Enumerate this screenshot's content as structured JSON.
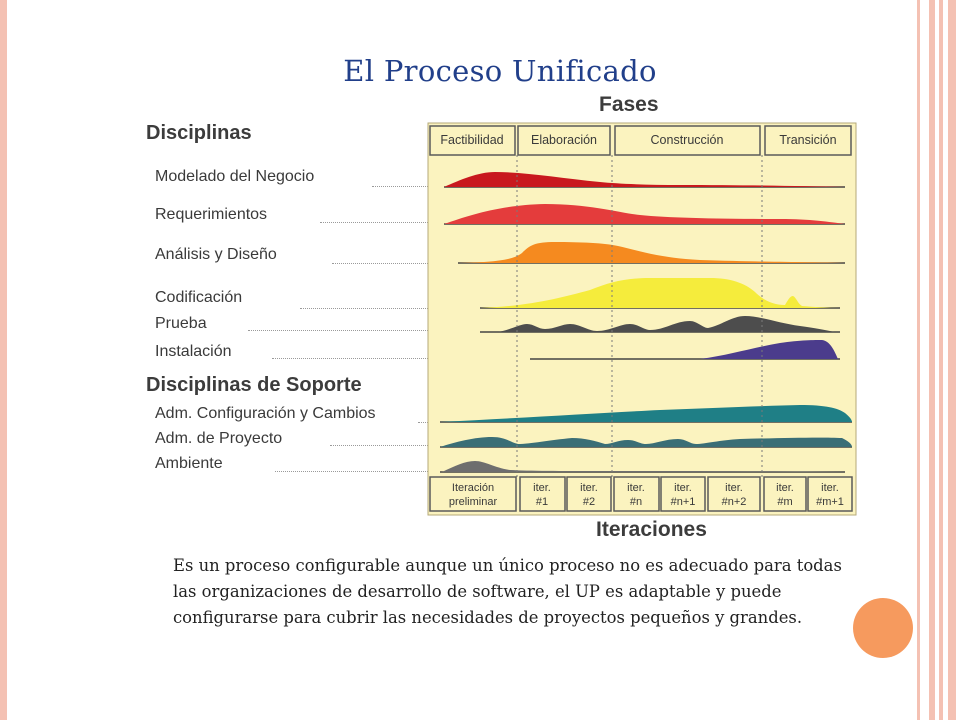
{
  "slide": {
    "title": "El Proceso Unificado",
    "paragraph": "Es un proceso configurable aunque un único proceso no es adecuado para todas las organizaciones de desarrollo de software, el UP es adaptable y puede configurarse para cubrir las necesidades  de proyectos pequeños y grandes."
  },
  "diagram": {
    "phases_heading": "Fases",
    "disciplines_heading": "Disciplinas",
    "support_heading": "Disciplinas de Soporte",
    "iterations_heading": "Iteraciones",
    "phases": [
      "Factibilidad",
      "Elaboración",
      "Construcción",
      "Transición"
    ],
    "disciplines": [
      {
        "label": "Modelado del Negocio",
        "color": "#c8181e"
      },
      {
        "label": "Requerimientos",
        "color": "#e43c3c"
      },
      {
        "label": "Análisis y Diseño",
        "color": "#f58a1f"
      },
      {
        "label": "Codificación",
        "color": "#f5ec3c"
      },
      {
        "label": "Prueba",
        "color": "#4d4d4d"
      },
      {
        "label": "Instalación",
        "color": "#4b3c8c"
      }
    ],
    "support_disciplines": [
      {
        "label": "Adm. Configuración y Cambios",
        "color": "#1f7f86"
      },
      {
        "label": "Adm. de Proyecto",
        "color": "#3a6e76"
      },
      {
        "label": "Ambiente",
        "color": "#6e6e6e"
      }
    ],
    "iterations": [
      [
        "Iteración",
        "preliminar"
      ],
      [
        "iter.",
        "#1"
      ],
      [
        "iter.",
        "#2"
      ],
      [
        "iter.",
        "#n"
      ],
      [
        "iter.",
        "#n+1"
      ],
      [
        "iter.",
        "#n+2"
      ],
      [
        "iter.",
        "#m"
      ],
      [
        "iter.",
        "#m+1"
      ]
    ],
    "panel_color": "#fbf3bf"
  },
  "theme": {
    "accent": "#f69a5e",
    "border": "#f4c1b3",
    "title_color": "#213f8a"
  }
}
